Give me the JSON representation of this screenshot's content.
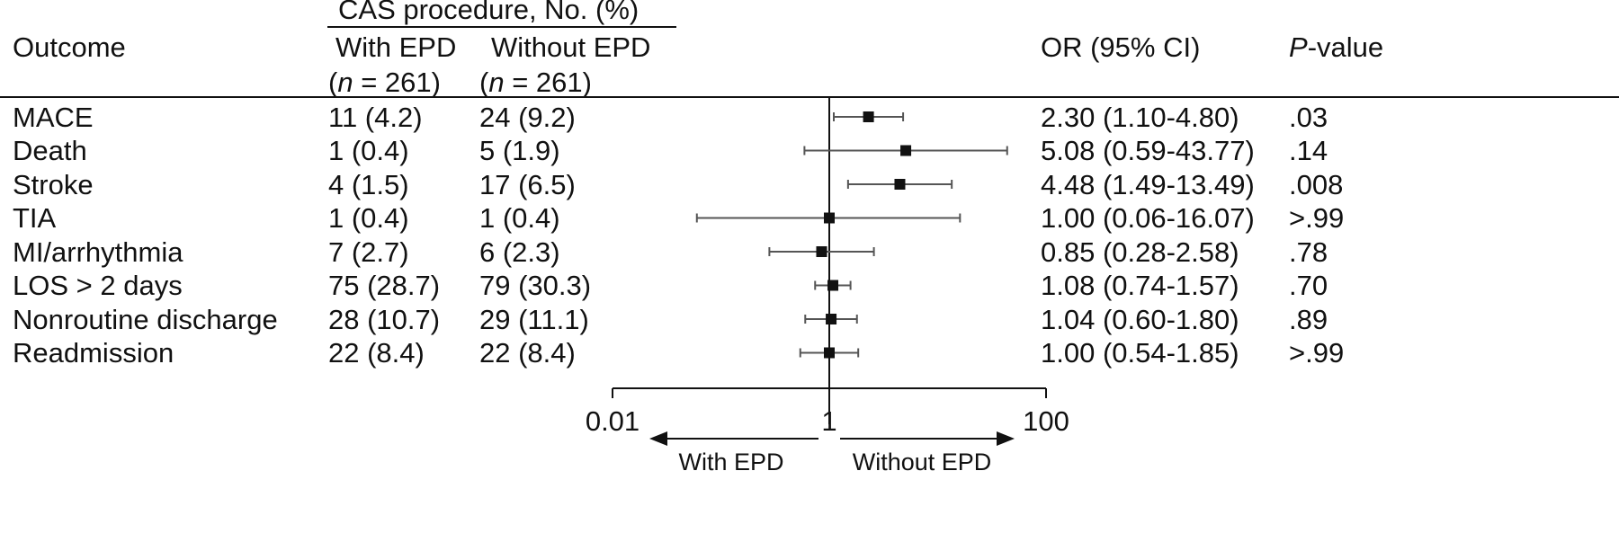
{
  "header": {
    "group_title": "CAS procedure, No. (%)",
    "outcome": "Outcome",
    "with_epd": "With EPD",
    "without_epd": "Without EPD",
    "n_with_prefix": "(",
    "n_with_italic": "n",
    "n_with_suffix": " = 261)",
    "n_without_prefix": "(",
    "n_without_italic": "n",
    "n_without_suffix": " = 261)",
    "or_ci": "OR (95% CI)",
    "p_italic": "P",
    "p_suffix": "-value"
  },
  "rows": [
    {
      "outcome": "MACE",
      "with_epd": "11 (4.2)",
      "without_epd": "24 (9.2)",
      "or_text": "2.30 (1.10-4.80)",
      "p": ".03"
    },
    {
      "outcome": "Death",
      "with_epd": "1 (0.4)",
      "without_epd": "5 (1.9)",
      "or_text": "5.08 (0.59-43.77)",
      "p": ".14"
    },
    {
      "outcome": "Stroke",
      "with_epd": "4 (1.5)",
      "without_epd": "17 (6.5)",
      "or_text": "4.48 (1.49-13.49)",
      "p": ".008"
    },
    {
      "outcome": "TIA",
      "with_epd": "1 (0.4)",
      "without_epd": "1 (0.4)",
      "or_text": "1.00 (0.06-16.07)",
      "p": ">.99"
    },
    {
      "outcome": "MI/arrhythmia",
      "with_epd": "7 (2.7)",
      "without_epd": "6 (2.3)",
      "or_text": "0.85 (0.28-2.58)",
      "p": ".78"
    },
    {
      "outcome": "LOS > 2 days",
      "with_epd": "75 (28.7)",
      "without_epd": "79 (30.3)",
      "or_text": "1.08 (0.74-1.57)",
      "p": ".70"
    },
    {
      "outcome": "Nonroutine discharge",
      "with_epd": "28 (10.7)",
      "without_epd": "29 (11.1)",
      "or_text": "1.04 (0.60-1.80)",
      "p": ".89"
    },
    {
      "outcome": "Readmission",
      "with_epd": "22 (8.4)",
      "without_epd": "22 (8.4)",
      "or_text": "1.00 (0.54-1.85)",
      "p": ">.99"
    }
  ],
  "chart_data": {
    "type": "scatter",
    "subtype": "forest-plot",
    "scale": "log",
    "xlim": [
      0.01,
      100
    ],
    "reference_line": 1,
    "x_ticks": [
      0.01,
      1,
      100
    ],
    "x_tick_labels": [
      "0.01",
      "1",
      "100"
    ],
    "direction_labels": {
      "left": "With EPD",
      "right": "Without EPD"
    },
    "categories": [
      "MACE",
      "Death",
      "Stroke",
      "TIA",
      "MI/arrhythmia",
      "LOS > 2 days",
      "Nonroutine discharge",
      "Readmission"
    ],
    "or": [
      2.3,
      5.08,
      4.48,
      1.0,
      0.85,
      1.08,
      1.04,
      1.0
    ],
    "ci_low": [
      1.1,
      0.59,
      1.49,
      0.06,
      0.28,
      0.74,
      0.6,
      0.54
    ],
    "ci_high": [
      4.8,
      43.77,
      13.49,
      16.07,
      2.58,
      1.57,
      1.8,
      1.85
    ],
    "colors": {
      "ink": "#111111",
      "whisker": "#555555"
    }
  }
}
